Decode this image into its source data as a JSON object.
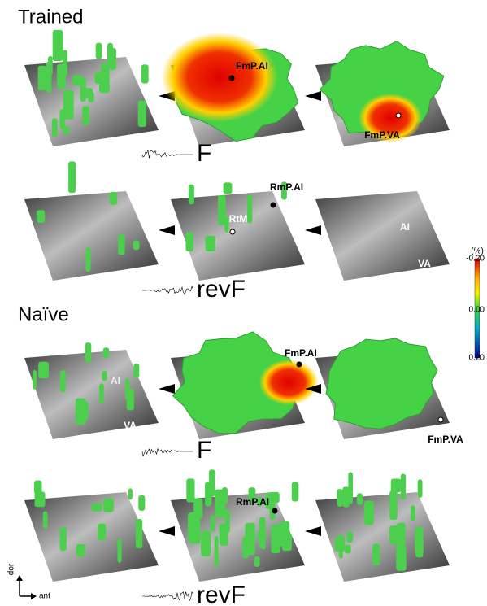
{
  "sections": [
    {
      "title": "Trained",
      "rows": [
        {
          "stimulus": "F",
          "panels": [
            {
              "labels": []
            },
            {
              "labels": [
                "FmP.AI"
              ]
            },
            {
              "labels": [
                "FmP.VA"
              ]
            }
          ]
        },
        {
          "stimulus": "revF",
          "panels": [
            {
              "labels": []
            },
            {
              "labels": [
                "RmP.AI",
                "RtM"
              ]
            },
            {
              "labels": [
                "AI",
                "VA"
              ]
            }
          ]
        }
      ]
    },
    {
      "title": "Naïve",
      "rows": [
        {
          "stimulus": "F",
          "panels": [
            {
              "labels": [
                "AI",
                "VA"
              ]
            },
            {
              "labels": [
                "FmP.AI"
              ]
            },
            {
              "labels": [
                "FmP.VA"
              ]
            }
          ]
        },
        {
          "stimulus": "revF",
          "panels": [
            {
              "labels": []
            },
            {
              "labels": [
                "RmP.AI"
              ]
            },
            {
              "labels": []
            }
          ]
        }
      ]
    }
  ],
  "colorbar": {
    "unit": "(%)",
    "ticks": [
      "-0.20",
      "0.00",
      "0.20"
    ]
  },
  "orientation": {
    "vertical": "dor",
    "horizontal": "ant"
  }
}
